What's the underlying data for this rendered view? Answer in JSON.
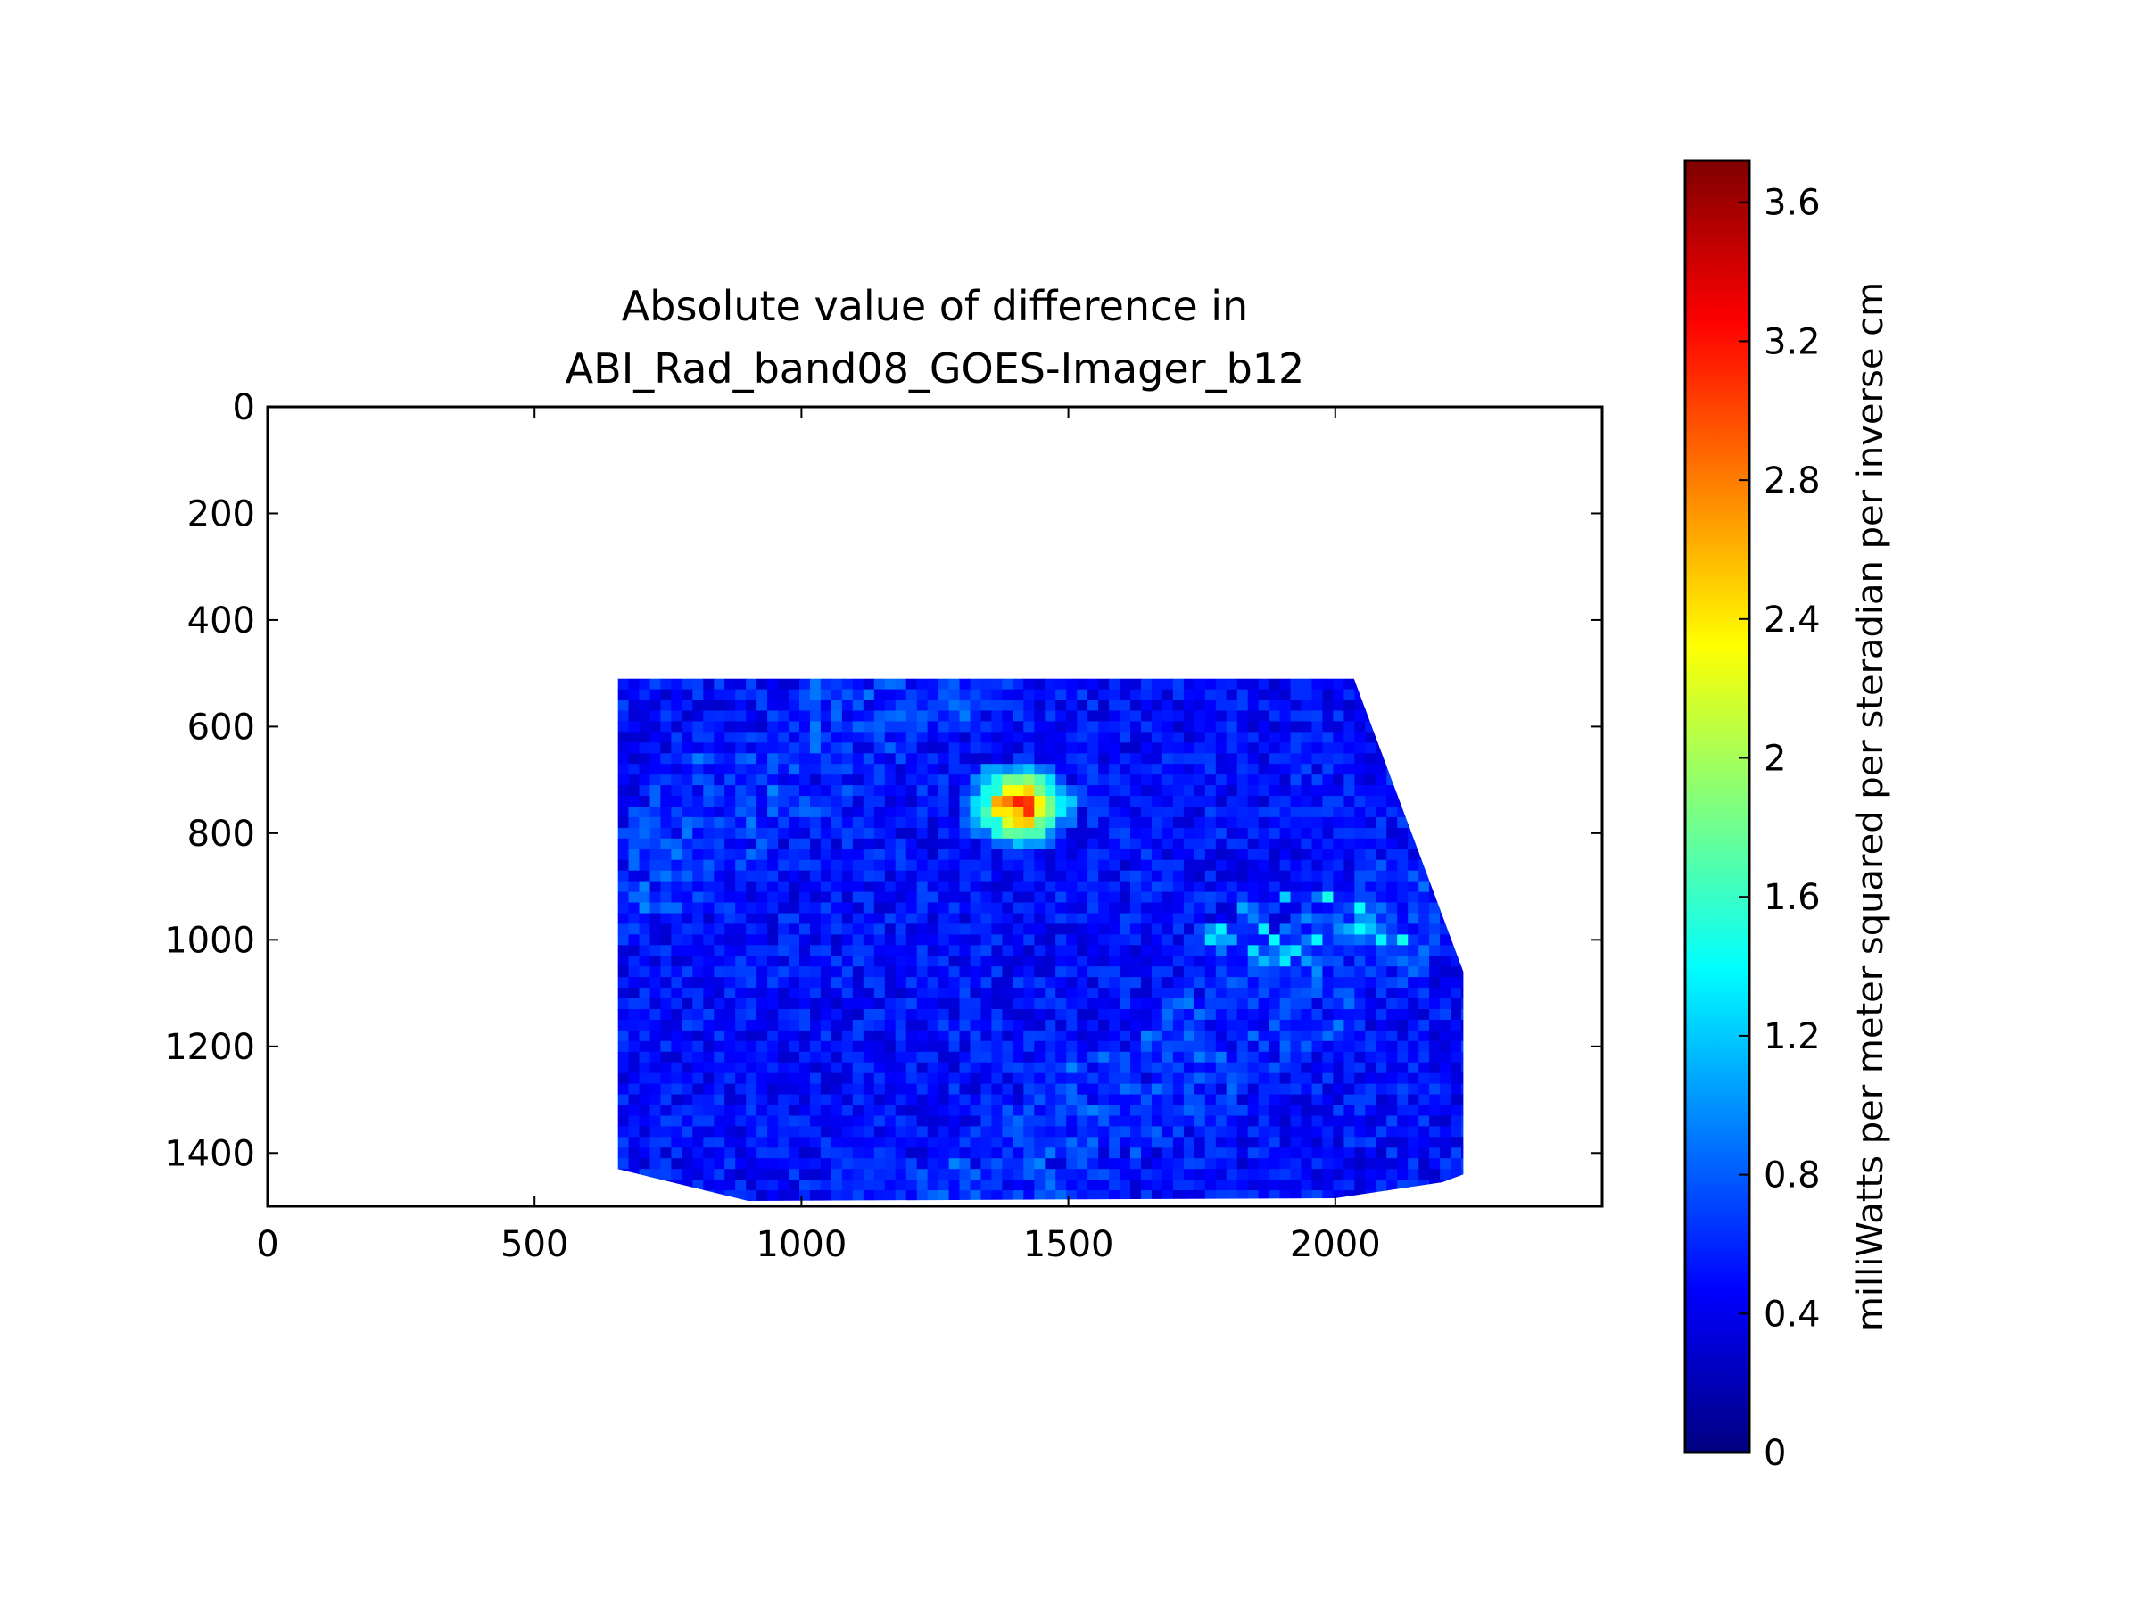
{
  "chart_data": {
    "type": "heatmap",
    "title": "Absolute value of difference in\nABI_Rad_band08_GOES-Imager_b12",
    "title_lines": [
      "Absolute value of difference in",
      "ABI_Rad_band08_GOES-Imager_b12"
    ],
    "x_axis": {
      "label": "",
      "range": [
        0,
        2500
      ],
      "ticks": [
        0,
        500,
        1000,
        1500,
        2000
      ],
      "tick_labels": [
        "0",
        "500",
        "1000",
        "1500",
        "2000"
      ]
    },
    "y_axis": {
      "label": "",
      "range": [
        0,
        1500
      ],
      "inverted": true,
      "ticks": [
        0,
        200,
        400,
        600,
        800,
        1000,
        1200,
        1400
      ],
      "tick_labels": [
        "0",
        "200",
        "400",
        "600",
        "800",
        "1000",
        "1200",
        "1400"
      ]
    },
    "data_region": {
      "columns": [
        656,
        2240
      ],
      "rows": [
        510,
        1490
      ],
      "polygon": [
        [
          656,
          510
        ],
        [
          2035,
          510
        ],
        [
          2240,
          1060
        ],
        [
          2240,
          1440
        ],
        [
          2200,
          1455
        ],
        [
          2000,
          1485
        ],
        [
          900,
          1490
        ],
        [
          656,
          1430
        ]
      ]
    },
    "value_summary": {
      "typical": 0.5,
      "max": 3.7,
      "hotspot_location": [
        1400,
        740
      ],
      "hotspot_value": 3.4
    },
    "colorbar": {
      "label": "milliWatts per meter squared per steradian per inverse cm",
      "colormap": "jet",
      "range": [
        0,
        3.72
      ],
      "ticks": [
        0,
        0.4,
        0.8,
        1.2,
        1.6,
        2,
        2.4,
        2.8,
        3.2,
        3.6
      ],
      "tick_labels": [
        "0",
        "0.4",
        "0.8",
        "1.2",
        "1.6",
        "2",
        "2.4",
        "2.8",
        "3.2",
        "3.6"
      ]
    },
    "grid": false,
    "legend": "none",
    "colors": {
      "jet": [
        "#00007f",
        "#0000ff",
        "#007fff",
        "#00ffff",
        "#7fff7f",
        "#ffff00",
        "#ff7f00",
        "#ff0000",
        "#7f0000"
      ]
    }
  }
}
